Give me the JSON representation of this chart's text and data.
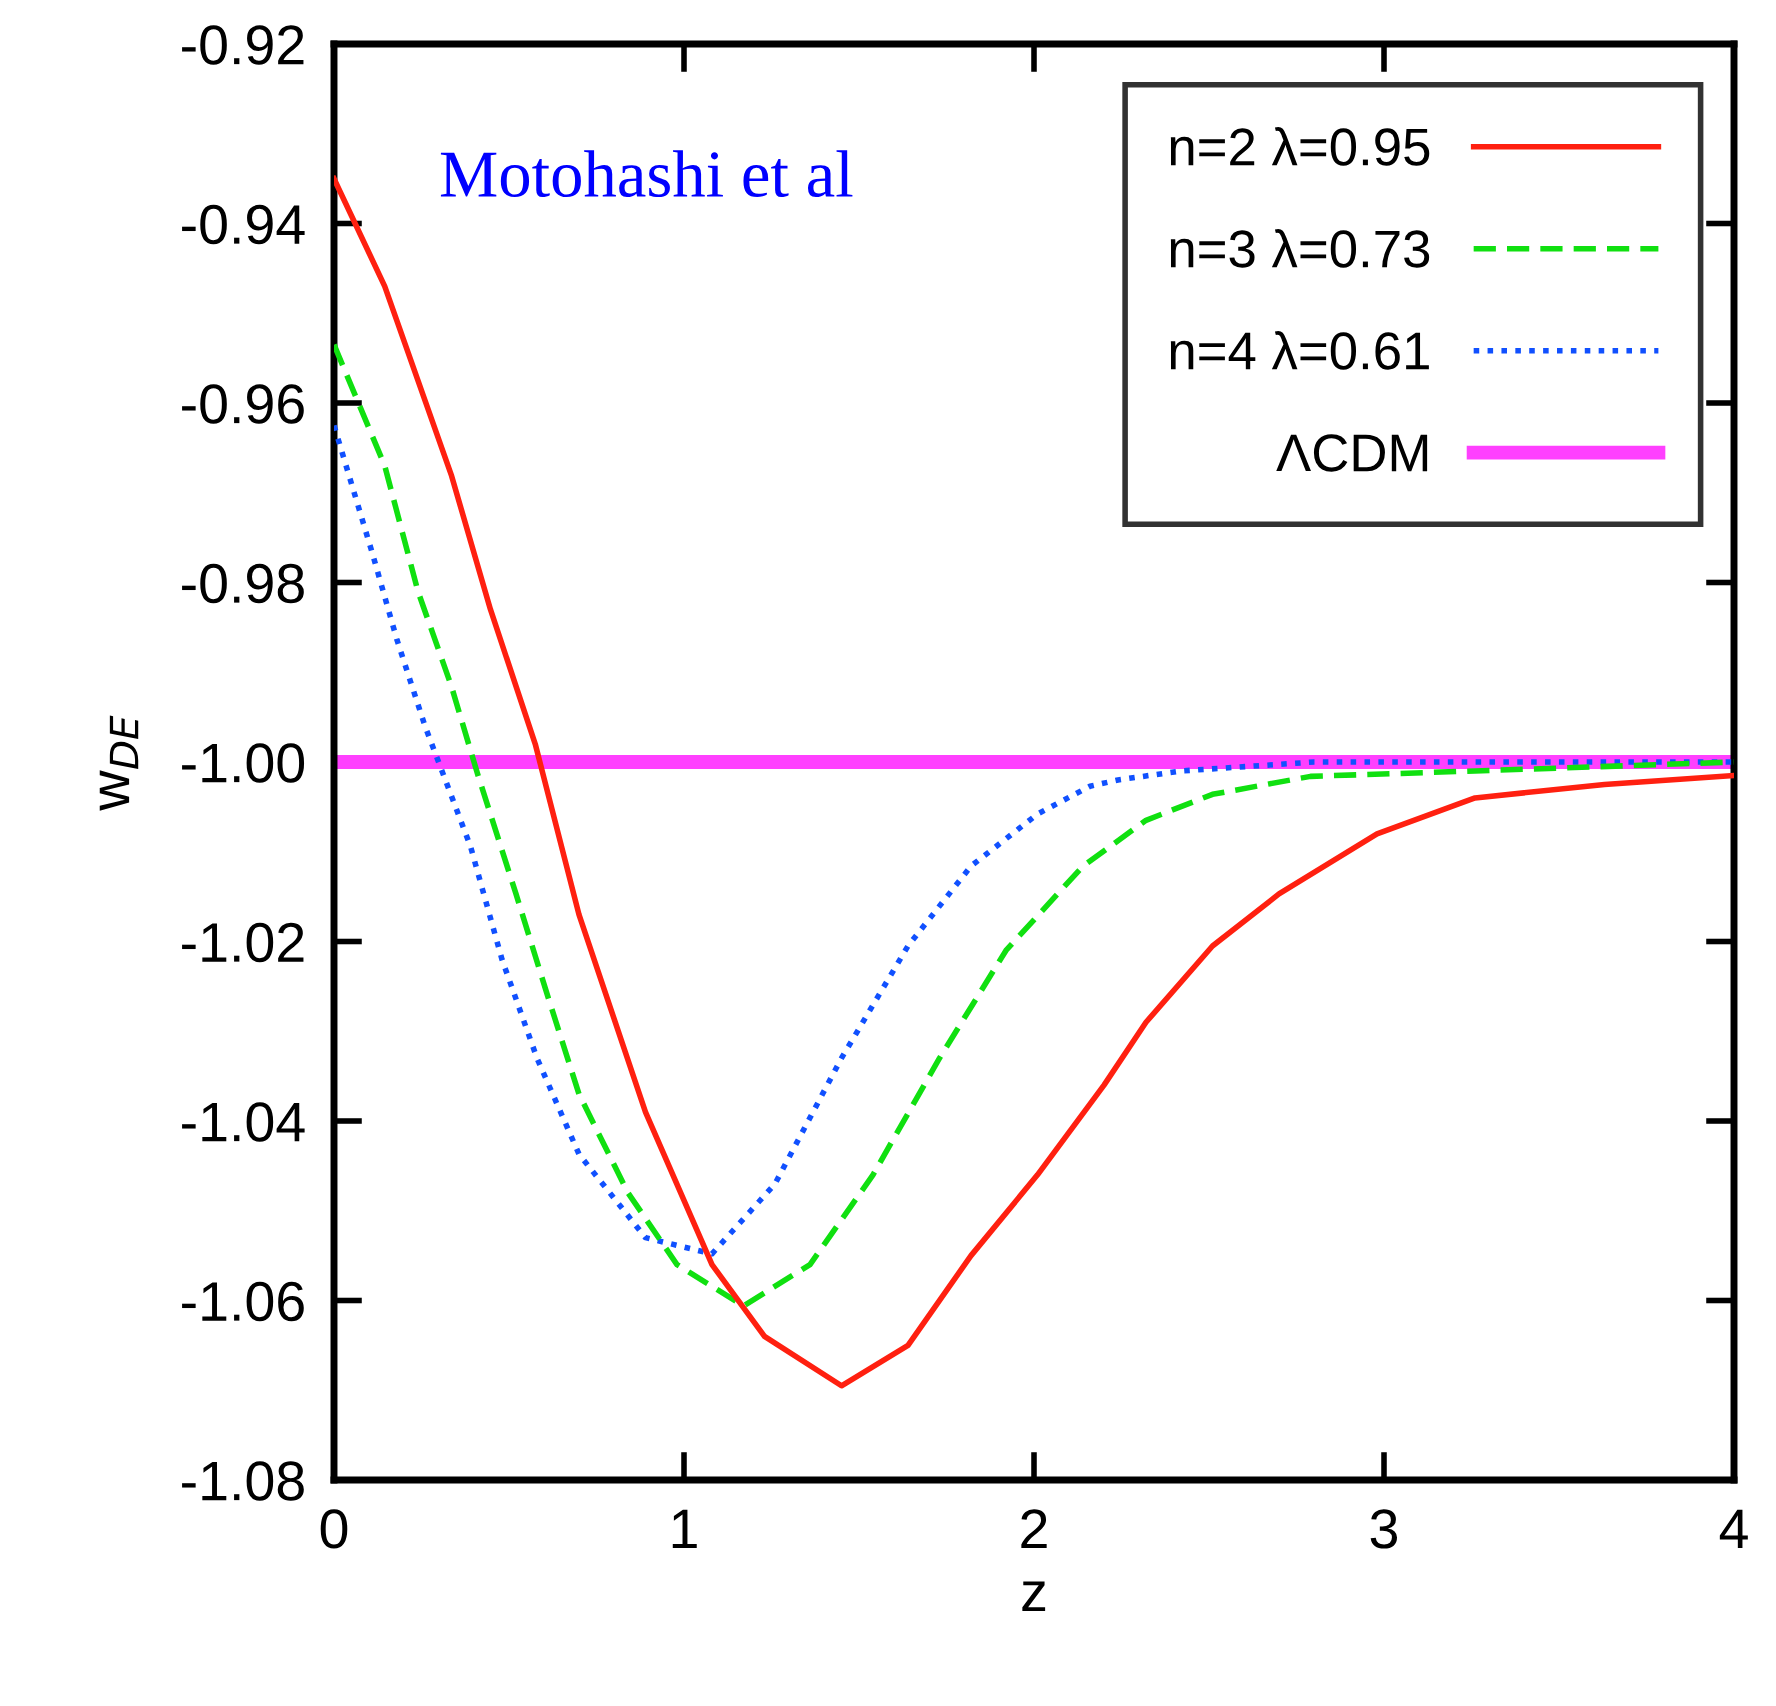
{
  "chart_data": {
    "type": "line",
    "xlabel": "z",
    "ylabel": "w$_{DE}$",
    "xlim": [
      0,
      4
    ],
    "xticks": [
      0,
      1,
      2,
      3,
      4
    ],
    "ylim": [
      -1.08,
      -0.92
    ],
    "yticks": [
      {
        "value": -1.08,
        "label": "-1.08"
      },
      {
        "value": -1.06,
        "label": "-1.06"
      },
      {
        "value": -1.04,
        "label": "-1.04"
      },
      {
        "value": -1.02,
        "label": "-1.02"
      },
      {
        "value": -1.0,
        "label": "-1.00"
      },
      {
        "value": -0.98,
        "label": "-0.98"
      },
      {
        "value": -0.96,
        "label": "-0.96"
      },
      {
        "value": -0.94,
        "label": "-0.94"
      },
      {
        "value": -0.92,
        "label": "-0.92"
      }
    ],
    "annotations": [
      "Motohashi et al"
    ],
    "legend": "top right",
    "grid": false,
    "series": [
      {
        "name": "n=2 λ=0.95",
        "color": "#ff2010",
        "line_style": "solid",
        "x": [
          0,
          0.145,
          0.335,
          0.447,
          0.575,
          0.7,
          0.89,
          1.08,
          1.23,
          1.45,
          1.64,
          1.82,
          2.01,
          2.2,
          2.32,
          2.51,
          2.7,
          2.98,
          3.26,
          3.63,
          4.0
        ],
        "values": [
          -0.935,
          -0.947,
          -0.968,
          -0.983,
          -0.998,
          -1.017,
          -1.039,
          -1.056,
          -1.064,
          -1.0695,
          -1.065,
          -1.055,
          -1.046,
          -1.036,
          -1.029,
          -1.0205,
          -1.0147,
          -1.008,
          -1.004,
          -1.0025,
          -1.0015
        ]
      },
      {
        "name": "n=3 λ=0.73",
        "color": "#10e010",
        "line_style": "dashed",
        "x": [
          0,
          0.145,
          0.24,
          0.335,
          0.41,
          0.52,
          0.61,
          0.7,
          0.84,
          0.98,
          1.17,
          1.36,
          1.54,
          1.73,
          1.92,
          2.14,
          2.32,
          2.51,
          2.79,
          3.26,
          4.0
        ],
        "values": [
          -0.9535,
          -0.967,
          -0.981,
          -0.9915,
          -1.0013,
          -1.0147,
          -1.026,
          -1.037,
          -1.048,
          -1.056,
          -1.0606,
          -1.056,
          -1.046,
          -1.033,
          -1.021,
          -1.0116,
          -1.0065,
          -1.0036,
          -1.0016,
          -1.001,
          -1.0
        ]
      },
      {
        "name": "n=4 λ=0.61",
        "color": "#1050ff",
        "line_style": "dotted",
        "x": [
          0,
          0.11,
          0.18,
          0.26,
          0.39,
          0.48,
          0.58,
          0.7,
          0.89,
          1.08,
          1.26,
          1.45,
          1.64,
          1.82,
          2.01,
          2.16,
          2.24,
          2.42,
          2.8,
          4.0
        ],
        "values": [
          -0.9625,
          -0.9768,
          -0.9864,
          -0.996,
          -1.0094,
          -1.022,
          -1.033,
          -1.0437,
          -1.053,
          -1.0548,
          -1.047,
          -1.033,
          -1.0205,
          -1.0116,
          -1.0058,
          -1.0027,
          -1.002,
          -1.001,
          -1.0,
          -1.0
        ]
      },
      {
        "name": "ΛCDM",
        "color": "#ff40ff",
        "line_style": "solid",
        "x": [
          0,
          4
        ],
        "values": [
          -1.0,
          -1.0
        ]
      }
    ]
  }
}
